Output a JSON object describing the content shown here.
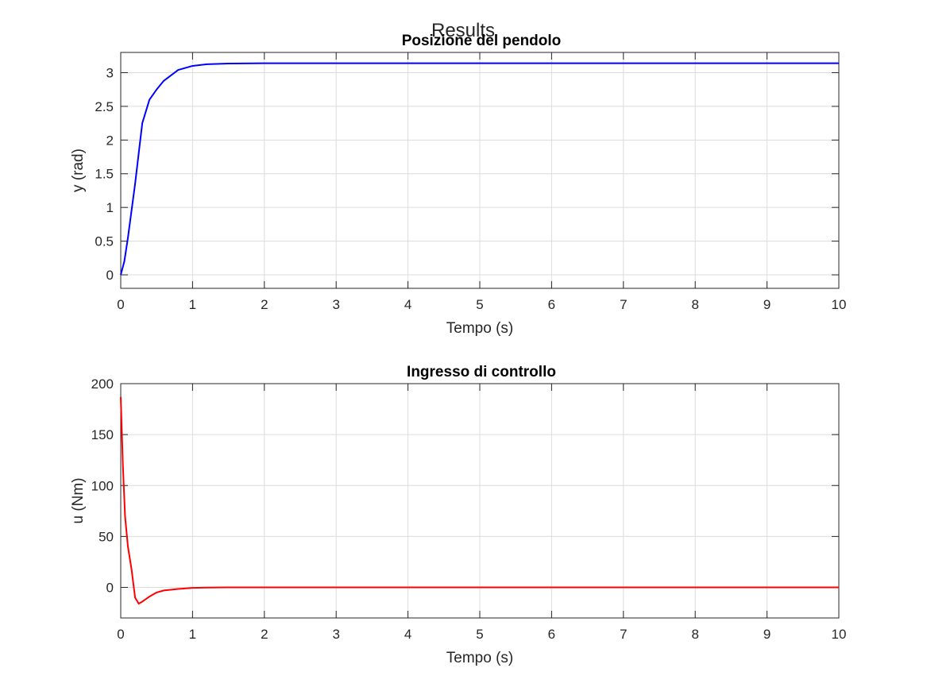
{
  "figure": {
    "suptitle": "Results"
  },
  "chart_data": [
    {
      "type": "line",
      "title": "Posizione del pendolo",
      "xlabel": "Tempo (s)",
      "ylabel": "y (rad)",
      "xlim": [
        0,
        10
      ],
      "ylim": [
        -0.2,
        3.3
      ],
      "xticks": [
        0,
        1,
        2,
        3,
        4,
        5,
        6,
        7,
        8,
        9,
        10
      ],
      "yticks": [
        0,
        0.5,
        1,
        1.5,
        2,
        2.5,
        3
      ],
      "ytick_labels": [
        "0",
        "0.5",
        "1",
        "1.5",
        "2",
        "2.5",
        "3"
      ],
      "grid": true,
      "color": "#0000ff",
      "series": [
        {
          "x": [
            0,
            0.05,
            0.1,
            0.15,
            0.2,
            0.25,
            0.3,
            0.4,
            0.5,
            0.6,
            0.8,
            1.0,
            1.2,
            1.5,
            2.0,
            2.5,
            3.0,
            4,
            5,
            6,
            7,
            8,
            9,
            10
          ],
          "y": [
            0,
            0.2,
            0.55,
            0.95,
            1.35,
            1.8,
            2.25,
            2.6,
            2.75,
            2.88,
            3.04,
            3.1,
            3.125,
            3.135,
            3.14,
            3.14,
            3.14,
            3.14,
            3.14,
            3.14,
            3.14,
            3.14,
            3.14,
            3.14
          ]
        }
      ]
    },
    {
      "type": "line",
      "title": "Ingresso di controllo",
      "xlabel": "Tempo (s)",
      "ylabel": "u (Nm)",
      "xlim": [
        0,
        10
      ],
      "ylim": [
        -30,
        200
      ],
      "xticks": [
        0,
        1,
        2,
        3,
        4,
        5,
        6,
        7,
        8,
        9,
        10
      ],
      "yticks": [
        0,
        50,
        100,
        150,
        200
      ],
      "ytick_labels": [
        "0",
        "50",
        "100",
        "150",
        "200"
      ],
      "grid": true,
      "color": "#ff0000",
      "series": [
        {
          "x": [
            0,
            0.03,
            0.06,
            0.1,
            0.15,
            0.2,
            0.25,
            0.3,
            0.4,
            0.5,
            0.6,
            0.8,
            1.0,
            1.2,
            1.5,
            2,
            3,
            4,
            5,
            6,
            7,
            8,
            9,
            10
          ],
          "y": [
            187,
            120,
            70,
            40,
            18,
            -10,
            -16,
            -14,
            -9,
            -5,
            -3,
            -1.5,
            -0.5,
            -0.2,
            0,
            0,
            0,
            0,
            0,
            0,
            0,
            0,
            0,
            0
          ]
        }
      ]
    }
  ]
}
